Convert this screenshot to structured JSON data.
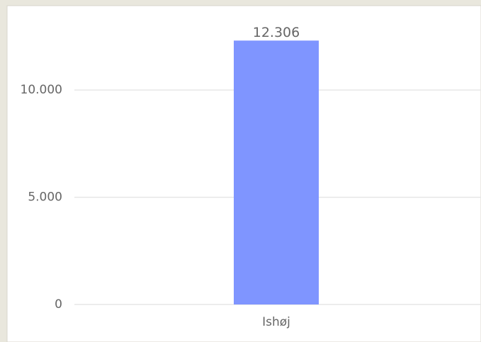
{
  "chart_data": {
    "type": "bar",
    "categories": [
      "Ishøj"
    ],
    "values": [
      12306
    ],
    "value_labels": [
      "12.306"
    ],
    "color": "#7f95ff",
    "ylim": [
      0,
      14000
    ],
    "yticks": [
      0,
      {
        "value": 5000,
        "label": "5.000"
      },
      {
        "value": 10000,
        "label": "10.000"
      }
    ],
    "grid": true
  }
}
